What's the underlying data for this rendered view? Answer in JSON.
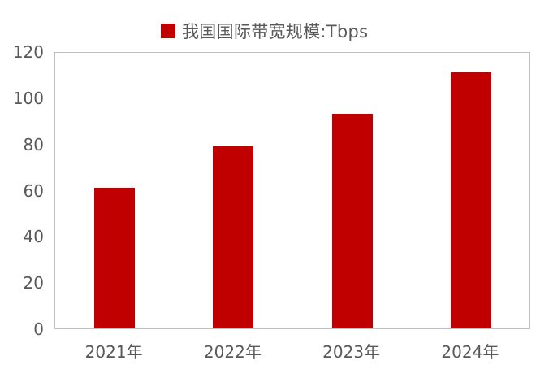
{
  "chart_data": {
    "type": "bar",
    "title": "",
    "legend": [
      "我国国际带宽规模:Tbps"
    ],
    "legend_position": "top",
    "categories": [
      "2021年",
      "2022年",
      "2023年",
      "2024年"
    ],
    "series": [
      {
        "name": "我国国际带宽规模:Tbps",
        "values": [
          61,
          79,
          93,
          111
        ],
        "color": "#C00000"
      }
    ],
    "xlabel": "",
    "ylabel": "",
    "ylim": [
      0,
      120
    ],
    "yticks": [
      "0",
      "20",
      "40",
      "60",
      "80",
      "100",
      "120"
    ],
    "grid": false
  }
}
